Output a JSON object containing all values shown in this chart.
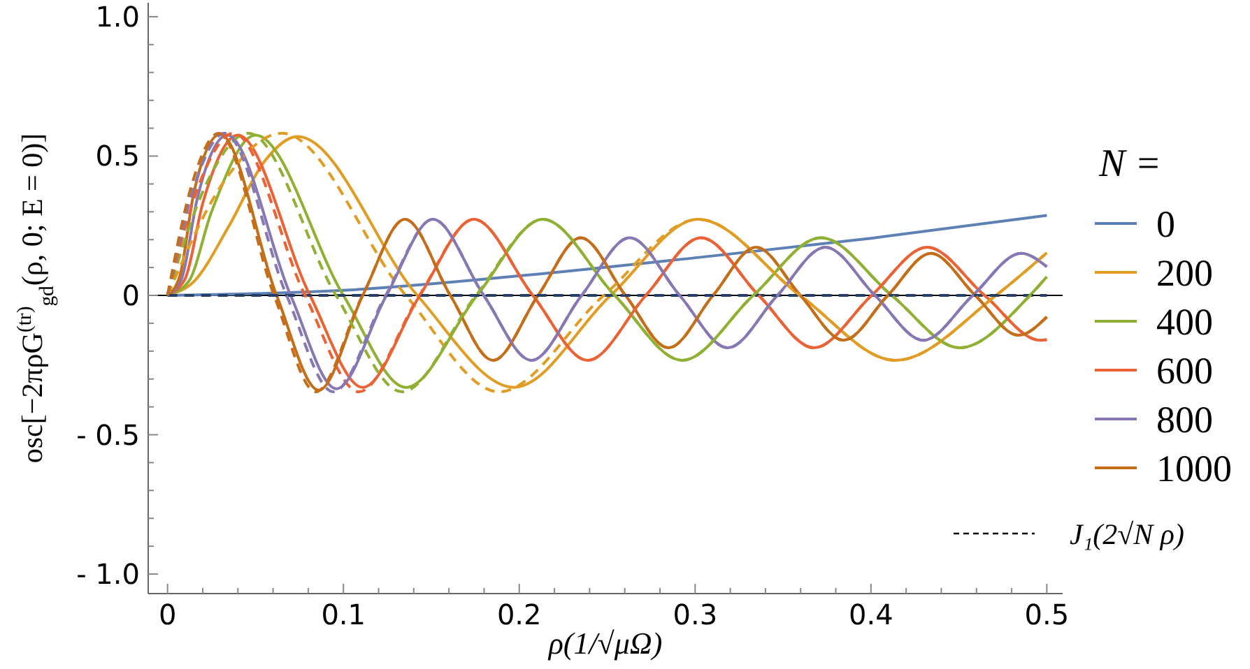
{
  "chart_data": {
    "type": "line",
    "xlabel": "ρ(1/√μΩ)",
    "ylabel": "osc[−2πρG$^{(tr)}$$_{gd}$(ρ, 0; E = 0)]",
    "legend_title": "N =",
    "legend": "right",
    "grid": false,
    "xlim": [
      -0.011,
      0.509
    ],
    "ylim": [
      -1.07,
      1.05
    ],
    "xticks": [
      0,
      {
        "value": 0.02,
        "label": null
      },
      {
        "value": 0.04,
        "label": null
      },
      {
        "value": 0.06,
        "label": null
      },
      {
        "value": 0.08,
        "label": null
      },
      0.1,
      {
        "value": 0.12,
        "label": null
      },
      {
        "value": 0.14,
        "label": null
      },
      {
        "value": 0.16,
        "label": null
      },
      {
        "value": 0.18,
        "label": null
      },
      0.2,
      {
        "value": 0.22,
        "label": null
      },
      {
        "value": 0.24,
        "label": null
      },
      {
        "value": 0.26,
        "label": null
      },
      {
        "value": 0.28,
        "label": null
      },
      0.3,
      {
        "value": 0.32,
        "label": null
      },
      {
        "value": 0.34,
        "label": null
      },
      {
        "value": 0.36,
        "label": null
      },
      {
        "value": 0.38,
        "label": null
      },
      0.4,
      {
        "value": 0.42,
        "label": null
      },
      {
        "value": 0.44,
        "label": null
      },
      {
        "value": 0.46,
        "label": null
      },
      {
        "value": 0.48,
        "label": null
      },
      0.5
    ],
    "yticks": [
      {
        "value": -1,
        "label": "- 1.0"
      },
      {
        "value": -0.9,
        "label": null
      },
      {
        "value": -0.8,
        "label": null
      },
      {
        "value": -0.7,
        "label": null
      },
      {
        "value": -0.6,
        "label": null
      },
      {
        "value": -0.5,
        "label": "- 0.5"
      },
      {
        "value": -0.4,
        "label": null
      },
      {
        "value": -0.3,
        "label": null
      },
      {
        "value": -0.2,
        "label": null
      },
      {
        "value": -0.1,
        "label": null
      },
      0,
      {
        "value": 0.1,
        "label": null
      },
      {
        "value": 0.2,
        "label": null
      },
      {
        "value": 0.3,
        "label": null
      },
      {
        "value": 0.4,
        "label": null
      },
      0.5,
      {
        "value": 0.6,
        "label": null
      },
      {
        "value": 0.7,
        "label": null
      },
      {
        "value": 0.8,
        "label": null
      },
      {
        "value": 0.9,
        "label": null
      },
      {
        "value": 1,
        "label": "1.0"
      }
    ],
    "ref_lines": [
      {
        "axis": "y",
        "value": 0,
        "color": "#000000"
      }
    ],
    "annotations": [
      "J₁(2√N ρ)"
    ],
    "series": [
      {
        "name": "0",
        "color": "#5e81b5",
        "x": [
          0,
          0.1,
          0.2,
          0.3,
          0.4,
          0.5
        ],
        "values": [
          0,
          0.018,
          0.07,
          0.135,
          0.205,
          0.287
        ]
      },
      {
        "name": "200",
        "color": "#e19c24",
        "x": [
          0,
          0.015,
          0.035,
          0.055,
          0.074,
          0.142,
          0.197,
          0.252,
          0.3018,
          0.3597,
          0.4139,
          0.4711,
          0.5
        ],
        "values": [
          0,
          0.05,
          0.25,
          0.48,
          0.57,
          0,
          -0.33,
          0,
          0.273,
          0,
          -0.233,
          0,
          0.153
        ]
      },
      {
        "name": "400",
        "color": "#8fb032",
        "x": [
          0,
          0.012,
          0.025,
          0.05,
          0.1,
          0.1355,
          0.176,
          0.2134,
          0.2543,
          0.2927,
          0.3331,
          0.3716,
          0.4118,
          0.4504,
          0.4904,
          0.5
        ],
        "values": [
          0,
          0.05,
          0.3,
          0.575,
          0,
          -0.33,
          0,
          0.273,
          0,
          -0.233,
          0,
          0.207,
          0,
          -0.188,
          0,
          0.067
        ]
      },
      {
        "name": "600",
        "color": "#eb6235",
        "x": [
          0,
          0.01,
          0.02,
          0.04,
          0.081,
          0.111,
          0.1435,
          0.1742,
          0.2077,
          0.2389,
          0.272,
          0.3034,
          0.3362,
          0.3677,
          0.4004,
          0.432,
          0.4646,
          0.4962,
          0.5
        ],
        "values": [
          0,
          0.06,
          0.33,
          0.575,
          0,
          -0.33,
          0,
          0.273,
          0,
          -0.233,
          0,
          0.207,
          0,
          -0.188,
          0,
          0.173,
          0,
          -0.161,
          -0.159
        ]
      },
      {
        "name": "800",
        "color": "#8778b3",
        "x": [
          0,
          0.008,
          0.017,
          0.034,
          0.07,
          0.096,
          0.1245,
          0.1509,
          0.1798,
          0.2069,
          0.2355,
          0.2628,
          0.2912,
          0.3185,
          0.3468,
          0.3741,
          0.4023,
          0.4298,
          0.4579,
          0.4854,
          0.5
        ],
        "values": [
          0,
          0.06,
          0.35,
          0.575,
          0,
          -0.335,
          0,
          0.273,
          0,
          -0.233,
          0,
          0.207,
          0,
          -0.188,
          0,
          0.173,
          0,
          -0.161,
          0,
          0.151,
          0.103
        ]
      },
      {
        "name": "1000",
        "color": "#c56e1a",
        "x": [
          0,
          0.007,
          0.015,
          0.03,
          0.062,
          0.086,
          0.111,
          0.135,
          0.1608,
          0.1851,
          0.2107,
          0.235,
          0.2604,
          0.2849,
          0.3102,
          0.3346,
          0.3599,
          0.3844,
          0.4096,
          0.4341,
          0.4593,
          0.4839,
          0.5
        ],
        "values": [
          0,
          0.07,
          0.37,
          0.578,
          0,
          -0.34,
          0,
          0.273,
          0,
          -0.233,
          0,
          0.207,
          0,
          -0.188,
          0,
          0.173,
          0,
          -0.161,
          0,
          0.151,
          0,
          -0.143,
          -0.077
        ]
      },
      {
        "color": "#253f6b",
        "line_style": "dashed",
        "x": [
          0,
          0.5
        ],
        "values": [
          0,
          0
        ]
      },
      {
        "color": "#e19c24",
        "line_style": "dashed",
        "x": [
          0,
          0.0318,
          0.0651,
          0.1355,
          0.1885,
          0.2481,
          0.3018,
          0.3597,
          0.4139,
          0.4711,
          0.5
        ],
        "values": [
          0,
          0.406,
          0.582,
          0,
          -0.346,
          0,
          0.273,
          0,
          -0.233,
          0,
          0.153
        ]
      },
      {
        "color": "#8fb032",
        "line_style": "dashed",
        "x": [
          0,
          0.0225,
          0.046,
          0.0958,
          0.1333,
          0.1754,
          0.2134,
          0.2543,
          0.2927,
          0.3331,
          0.3716,
          0.4118,
          0.4504,
          0.4904,
          0.5
        ],
        "values": [
          0,
          0.406,
          0.582,
          0,
          -0.346,
          0,
          0.273,
          0,
          -0.233,
          0,
          0.207,
          0,
          -0.188,
          0,
          0.067
        ]
      },
      {
        "color": "#eb6235",
        "line_style": "dashed",
        "x": [
          0,
          0.0184,
          0.0376,
          0.0782,
          0.1088,
          0.1432,
          0.1742,
          0.2077,
          0.2389,
          0.272,
          0.3034,
          0.3362,
          0.3677,
          0.4004,
          0.432,
          0.4646,
          0.4962,
          0.5
        ],
        "values": [
          0,
          0.406,
          0.582,
          0,
          -0.346,
          0,
          0.273,
          0,
          -0.233,
          0,
          0.207,
          0,
          -0.188,
          0,
          0.173,
          0,
          -0.161,
          -0.159
        ]
      },
      {
        "color": "#8778b3",
        "line_style": "dashed",
        "x": [
          0,
          0.0159,
          0.0325,
          0.0677,
          0.0942,
          0.124,
          0.1509,
          0.1798,
          0.2069,
          0.2355,
          0.2628,
          0.2912,
          0.3185,
          0.3468,
          0.3741,
          0.4023,
          0.4298,
          0.4579,
          0.4854,
          0.5
        ],
        "values": [
          0,
          0.406,
          0.582,
          0,
          -0.346,
          0,
          0.273,
          0,
          -0.233,
          0,
          0.207,
          0,
          -0.188,
          0,
          0.173,
          0,
          -0.161,
          0,
          0.151,
          0.103
        ]
      },
      {
        "color": "#c56e1a",
        "line_style": "dashed",
        "x": [
          0,
          0.0142,
          0.0291,
          0.0606,
          0.0843,
          0.1109,
          0.135,
          0.1608,
          0.1851,
          0.2107,
          0.235,
          0.2604,
          0.2849,
          0.3102,
          0.3346,
          0.3599,
          0.3844,
          0.4096,
          0.4341,
          0.4593,
          0.4839,
          0.5
        ],
        "values": [
          0,
          0.406,
          0.582,
          0,
          -0.346,
          0,
          0.273,
          0,
          -0.233,
          0,
          0.207,
          0,
          -0.188,
          0,
          0.173,
          0,
          -0.161,
          0,
          0.151,
          0,
          -0.143,
          -0.077
        ]
      }
    ]
  }
}
